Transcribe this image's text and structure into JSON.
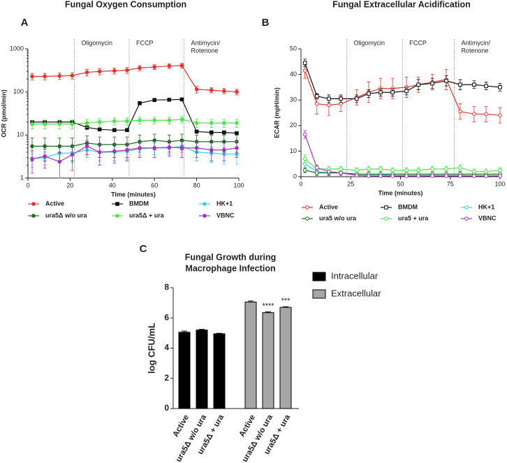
{
  "chart_data": [
    {
      "type": "line",
      "panel": "A",
      "title": "Fungal Oxygen Consumption",
      "xlabel": "Time (minutes)",
      "ylabel": "OCR (pmol/min)",
      "log_y": true,
      "filled": true,
      "xlim": [
        0,
        100
      ],
      "xticks": [
        0,
        20,
        40,
        60,
        80,
        100
      ],
      "ylim": [
        1,
        1000
      ],
      "yticks": [
        1,
        10,
        100,
        1000
      ],
      "events": [
        {
          "label": [
            "Oligomycin"
          ],
          "x": 22
        },
        {
          "label": [
            "FCCP"
          ],
          "x": 48
        },
        {
          "label": [
            "Antimycin/",
            "Rotenone"
          ],
          "x": 74
        }
      ],
      "x": [
        2,
        8,
        15,
        21,
        28,
        34,
        41,
        47,
        53,
        60,
        67,
        73,
        80,
        87,
        93,
        99
      ],
      "series": [
        {
          "name": "Active",
          "color": "#e5322c",
          "marker": "circle",
          "values": [
            230,
            230,
            235,
            240,
            285,
            300,
            310,
            320,
            360,
            380,
            400,
            410,
            115,
            110,
            105,
            100
          ],
          "errors": [
            40,
            40,
            40,
            40,
            50,
            50,
            50,
            50,
            50,
            50,
            50,
            50,
            20,
            15,
            15,
            15
          ]
        },
        {
          "name": "BMDM",
          "color": "#111111",
          "marker": "square",
          "values": [
            20,
            20,
            20,
            20,
            15,
            13.5,
            13,
            13,
            55,
            65,
            66,
            67,
            12,
            11.5,
            11.5,
            11
          ],
          "errors": [
            2,
            2,
            2,
            2,
            1.5,
            1,
            1,
            1,
            5,
            5,
            5,
            5,
            1,
            1,
            1,
            1
          ]
        },
        {
          "name": "HK+1",
          "color": "#35d3de",
          "marker": "circle",
          "values": [
            2.8,
            3,
            3.8,
            3.8,
            4.5,
            4,
            4,
            4.2,
            4.8,
            5,
            5,
            5.5,
            4,
            3.8,
            3.6,
            3.6
          ],
          "errors": [
            1,
            1,
            1.5,
            1.5,
            1.5,
            1.5,
            1.5,
            1.5,
            1.5,
            1.5,
            1.5,
            1.5,
            1.5,
            1.5,
            1.5,
            1.5
          ]
        },
        {
          "name": "ura5Δ w/o ura",
          "color": "#1e6b1e",
          "marker": "circle",
          "values": [
            5.5,
            5.5,
            5.5,
            5.5,
            6.5,
            6,
            6,
            6,
            7,
            7.5,
            7,
            7.5,
            7,
            7,
            7,
            7
          ],
          "errors": [
            3,
            3,
            3,
            3,
            3,
            3,
            3,
            3,
            3,
            3,
            3,
            3,
            3,
            3,
            3,
            3
          ]
        },
        {
          "name": "ura5Δ + ura",
          "color": "#4fe34b",
          "marker": "circle",
          "values": [
            18,
            18,
            18,
            18,
            19,
            20,
            21,
            21,
            22,
            22,
            22,
            23,
            19,
            19,
            19,
            19
          ],
          "errors": [
            4,
            4,
            4,
            4,
            4,
            4,
            4,
            4,
            4,
            4,
            4,
            4,
            4,
            4,
            4,
            4
          ]
        },
        {
          "name": "VBNC",
          "color": "#a333c8",
          "marker": "circle",
          "values": [
            2.8,
            3.2,
            2.4,
            3.5,
            5.5,
            4,
            4.2,
            4.5,
            5,
            5,
            5.2,
            5,
            5,
            4.5,
            4.5,
            5
          ],
          "errors": [
            1.5,
            1.5,
            1.5,
            2,
            2,
            2,
            2,
            2,
            2,
            2,
            2,
            2,
            2,
            2,
            2,
            2
          ]
        }
      ]
    },
    {
      "type": "line",
      "panel": "B",
      "title": "Fungal Extracellular Acidification",
      "xlabel": "Time (minutes)",
      "ylabel": "ECAR (mpH/min)",
      "log_y": false,
      "filled": false,
      "xlim": [
        0,
        100
      ],
      "xticks": [
        0,
        25,
        50,
        75,
        100
      ],
      "ylim": [
        0,
        50
      ],
      "yticks": [
        0,
        10,
        20,
        30,
        40,
        50
      ],
      "events": [
        {
          "label": [
            "Oligomycin"
          ],
          "x": 23
        },
        {
          "label": [
            "FCCP"
          ],
          "x": 51
        },
        {
          "label": [
            "Antimycin/",
            "Rotenone"
          ],
          "x": 77
        }
      ],
      "x": [
        2,
        8,
        14,
        20,
        28,
        34,
        40,
        46,
        53,
        59,
        66,
        73,
        80,
        87,
        93,
        100
      ],
      "series": [
        {
          "name": "Active",
          "color": "#e5322c",
          "marker": "circle",
          "values": [
            41.5,
            28.5,
            28,
            28.5,
            31,
            33,
            34.5,
            34.5,
            35,
            36,
            37,
            38,
            25.5,
            24.5,
            24.5,
            24
          ],
          "errors": [
            3,
            4,
            4,
            3,
            3,
            4,
            4,
            4,
            4,
            3,
            3,
            4,
            3,
            3,
            3,
            3
          ]
        },
        {
          "name": "BMDM",
          "color": "#111111",
          "marker": "square",
          "values": [
            44.5,
            31.5,
            30.5,
            30.5,
            30.5,
            32.5,
            33,
            33,
            33.5,
            36,
            36.5,
            37.5,
            36,
            36,
            35.5,
            35
          ],
          "errors": [
            1.5,
            1,
            1.5,
            1.5,
            1.5,
            1.5,
            1.5,
            1.5,
            1.5,
            2,
            2,
            2,
            2,
            1.5,
            1.5,
            1.5
          ]
        },
        {
          "name": "HK+1",
          "color": "#35d3de",
          "marker": "circle",
          "values": [
            5,
            2,
            1.5,
            1.5,
            1,
            0.8,
            0.8,
            0.5,
            0.5,
            0.5,
            0.5,
            0.5,
            0.5,
            0.3,
            0.3,
            0.3
          ],
          "errors": [
            2,
            1,
            1,
            0.5,
            0.5,
            0.5,
            0.5,
            0.5,
            0.5,
            0.5,
            0.5,
            0.5,
            0.5,
            0.5,
            0.5,
            0.5
          ]
        },
        {
          "name": "ura5 w/o ura",
          "color": "#1e6b1e",
          "marker": "circle",
          "values": [
            2.5,
            1.5,
            1.5,
            1.5,
            1,
            1,
            1,
            1,
            1,
            1,
            1,
            1,
            1,
            1,
            1,
            1
          ],
          "errors": [
            1,
            1,
            1,
            1,
            1,
            1,
            1,
            1,
            1,
            1,
            1,
            1,
            1,
            1,
            1,
            1
          ]
        },
        {
          "name": "ura5 + ura",
          "color": "#4fe34b",
          "marker": "circle",
          "values": [
            7,
            3,
            3,
            3,
            2.5,
            3,
            3,
            2.5,
            2.5,
            2.5,
            3,
            3,
            3.5,
            2,
            2,
            2.5
          ],
          "errors": [
            1.5,
            1,
            1,
            1,
            1,
            1,
            1,
            1,
            1,
            1,
            1,
            1,
            1,
            1,
            1,
            1
          ]
        },
        {
          "name": "VBNC",
          "color": "#a333c8",
          "marker": "circle",
          "values": [
            16.5,
            3.5,
            2,
            1.5,
            0.5,
            0.3,
            0.3,
            0.3,
            0.3,
            0.3,
            0.3,
            0.3,
            0.3,
            0.3,
            0.3,
            0.3
          ],
          "errors": [
            1.5,
            1,
            0.5,
            0.5,
            0.5,
            0.5,
            0.5,
            0.5,
            0.5,
            0.5,
            0.5,
            0.5,
            0.5,
            0.5,
            0.5,
            0.5
          ]
        }
      ]
    },
    {
      "type": "bar",
      "panel": "C",
      "title": [
        "Fungal Growth during",
        "Macrophage Infection"
      ],
      "ylabel": "log CFU/mL",
      "ylim": [
        0,
        8
      ],
      "yticks": [
        0,
        2,
        4,
        6,
        8
      ],
      "categories": [
        "Active",
        "ura5Δ w/o ura",
        "ura5Δ + ura",
        "Active",
        "ura5Δ w/o ura",
        "ura5Δ + ura"
      ],
      "significance": [
        null,
        null,
        null,
        null,
        "****",
        "***"
      ],
      "series": [
        {
          "name": "Intracellular",
          "color": "#000000",
          "values": [
            5.05,
            5.2,
            4.95,
            null,
            null,
            null
          ],
          "errors": [
            0.08,
            0.04,
            0.03,
            null,
            null,
            null
          ]
        },
        {
          "name": "Extracellular",
          "color": "#a6a6a6",
          "values": [
            null,
            null,
            null,
            7.05,
            6.35,
            6.7
          ],
          "errors": [
            null,
            null,
            null,
            0.07,
            0.05,
            0.04
          ]
        }
      ]
    }
  ]
}
